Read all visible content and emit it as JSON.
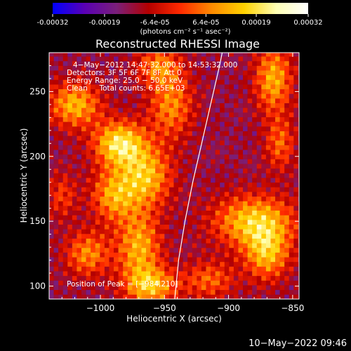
{
  "chart_data": {
    "type": "heatmap",
    "title": "Reconstructed RHESSI Image",
    "xlabel": "Heliocentric X (arcsec)",
    "ylabel": "Heliocentric Y (arcsec)",
    "xlim": [
      -1040,
      -845
    ],
    "ylim": [
      90,
      280
    ],
    "xticks": [
      -1000,
      -950,
      -900,
      -850
    ],
    "xtick_labels": [
      "−1000",
      "−950",
      "−900",
      "−850"
    ],
    "yticks": [
      100,
      150,
      200,
      250
    ],
    "ytick_labels": [
      "100",
      "150",
      "200",
      "250"
    ],
    "colorbar": {
      "min": -0.00032,
      "max": 0.00032,
      "ticks": [
        -0.00032,
        -0.00019,
        -6.4e-05,
        6.4e-05,
        0.00019,
        0.00032
      ],
      "tick_labels": [
        "-0.00032",
        "-0.00019",
        "-6.4e-05",
        "6.4e-05",
        "0.00019",
        "0.00032"
      ],
      "unit_label": "(photons cm⁻² s⁻¹ asec⁻²)",
      "colormap": [
        "#0000ff",
        "#5a00b4",
        "#7a1f7a",
        "#b40000",
        "#ff2a00",
        "#ff8c00",
        "#ffd200",
        "#ffffb4",
        "#ffffff"
      ]
    },
    "annotations": [
      "4−May−2012 14:47:32.000 to 14:53:32.000",
      "Detectors: 3F 5F 6F 7F 8F  Att 0",
      "Energy Range: 25.0 − 50.0 keV",
      "Clean     Total counts: 6.65E+03"
    ],
    "peak_label": "Position of Peak = [−984,210]",
    "limb_curve": [
      [
        -942,
        90
      ],
      [
        -939,
        120
      ],
      [
        -934,
        150
      ],
      [
        -928,
        180
      ],
      [
        -921,
        210
      ],
      [
        -914,
        240
      ],
      [
        -907,
        270
      ],
      [
        -905,
        280
      ]
    ],
    "intensity_regions": [
      {
        "x": -1020,
        "y": 240,
        "sx": 14,
        "sy": 12,
        "amp": 0.00025
      },
      {
        "x": -985,
        "y": 210,
        "sx": 14,
        "sy": 12,
        "amp": 0.00032
      },
      {
        "x": -965,
        "y": 185,
        "sx": 14,
        "sy": 16,
        "amp": 0.00026
      },
      {
        "x": -990,
        "y": 170,
        "sx": 12,
        "sy": 14,
        "amp": 0.00022
      },
      {
        "x": -970,
        "y": 130,
        "sx": 12,
        "sy": 20,
        "amp": 0.00024
      },
      {
        "x": -1010,
        "y": 125,
        "sx": 12,
        "sy": 12,
        "amp": 0.0002
      },
      {
        "x": -960,
        "y": 100,
        "sx": 14,
        "sy": 10,
        "amp": 0.00024
      },
      {
        "x": -945,
        "y": 240,
        "sx": 12,
        "sy": 18,
        "amp": 0.0002
      },
      {
        "x": -955,
        "y": 270,
        "sx": 12,
        "sy": 10,
        "amp": 0.00018
      },
      {
        "x": -880,
        "y": 150,
        "sx": 22,
        "sy": 14,
        "amp": 0.00028
      },
      {
        "x": -870,
        "y": 125,
        "sx": 12,
        "sy": 14,
        "amp": 0.00024
      },
      {
        "x": -865,
        "y": 260,
        "sx": 10,
        "sy": 18,
        "amp": 0.00024
      },
      {
        "x": -860,
        "y": 210,
        "sx": 8,
        "sy": 14,
        "amp": 0.00016
      },
      {
        "x": -915,
        "y": 105,
        "sx": 14,
        "sy": 10,
        "amp": 0.00016
      },
      {
        "x": -1030,
        "y": 170,
        "sx": 8,
        "sy": 12,
        "amp": 0.00012
      }
    ]
  },
  "timestamp": "10−May−2022 09:46"
}
